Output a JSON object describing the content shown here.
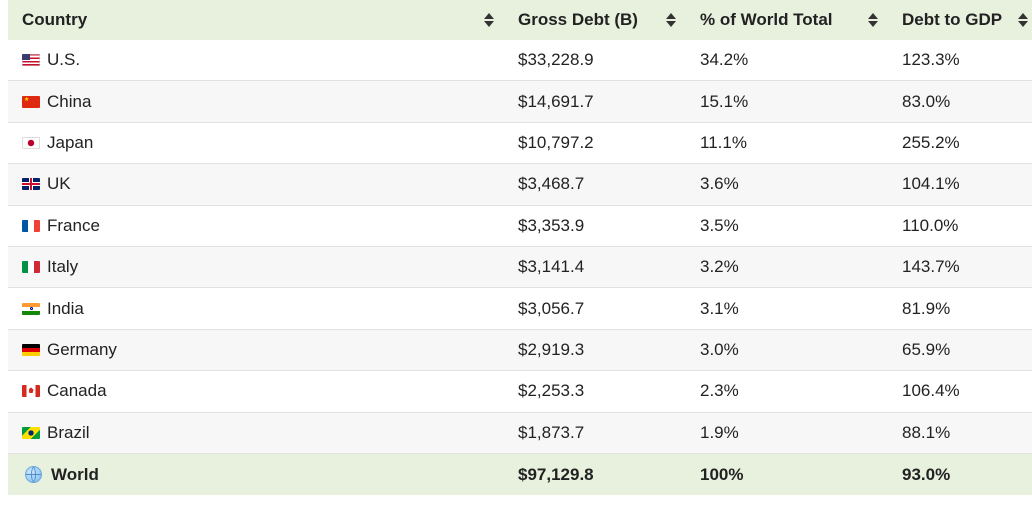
{
  "header": {
    "country": "Country",
    "gross_debt": "Gross Debt (B)",
    "pct_world": "% of World Total",
    "debt_gdp": "Debt to GDP"
  },
  "rows": [
    {
      "country": "U.S.",
      "flag": "us-flag-icon",
      "gross_debt": "$33,228.9",
      "pct_world": "34.2%",
      "debt_gdp": "123.3%"
    },
    {
      "country": "China",
      "flag": "china-flag-icon",
      "gross_debt": "$14,691.7",
      "pct_world": "15.1%",
      "debt_gdp": "83.0%"
    },
    {
      "country": "Japan",
      "flag": "japan-flag-icon",
      "gross_debt": "$10,797.2",
      "pct_world": "11.1%",
      "debt_gdp": "255.2%"
    },
    {
      "country": "UK",
      "flag": "uk-flag-icon",
      "gross_debt": "$3,468.7",
      "pct_world": "3.6%",
      "debt_gdp": "104.1%"
    },
    {
      "country": "France",
      "flag": "france-flag-icon",
      "gross_debt": "$3,353.9",
      "pct_world": "3.5%",
      "debt_gdp": "110.0%"
    },
    {
      "country": "Italy",
      "flag": "italy-flag-icon",
      "gross_debt": "$3,141.4",
      "pct_world": "3.2%",
      "debt_gdp": "143.7%"
    },
    {
      "country": "India",
      "flag": "india-flag-icon",
      "gross_debt": "$3,056.7",
      "pct_world": "3.1%",
      "debt_gdp": "81.9%"
    },
    {
      "country": "Germany",
      "flag": "germany-flag-icon",
      "gross_debt": "$2,919.3",
      "pct_world": "3.0%",
      "debt_gdp": "65.9%"
    },
    {
      "country": "Canada",
      "flag": "canada-flag-icon",
      "gross_debt": "$2,253.3",
      "pct_world": "2.3%",
      "debt_gdp": "106.4%"
    },
    {
      "country": "Brazil",
      "flag": "brazil-flag-icon",
      "gross_debt": "$1,873.7",
      "pct_world": "1.9%",
      "debt_gdp": "88.1%"
    }
  ],
  "total": {
    "country": "World",
    "icon": "globe-icon",
    "gross_debt": "$97,129.8",
    "pct_world": "100%",
    "debt_gdp": "93.0%"
  },
  "colors": {
    "header_bg": "#e8f0de",
    "total_bg": "#e8f0de",
    "alt_row_bg": "#f7f7f7",
    "border": "#e2e2e2"
  }
}
